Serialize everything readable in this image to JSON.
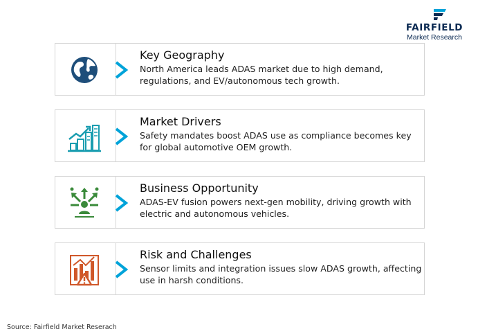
{
  "brand": {
    "name": "FAIRFIELD",
    "tagline": "Market Research",
    "color": "#0b2a52"
  },
  "accent_color": "#00a3d9",
  "cards": [
    {
      "title": "Key Geography",
      "text": "North America leads ADAS market due to high demand, regulations, and EV/autonomous tech growth.",
      "icon": "globe-icon",
      "icon_color": "#1e4e7a"
    },
    {
      "title": "Market Drivers",
      "text": "Safety mandates boost ADAS use as compliance becomes key for global automotive OEM growth.",
      "icon": "growth-city-icon",
      "icon_color": "#1a9db0"
    },
    {
      "title": "Business Opportunity",
      "text": "ADAS-EV fusion powers next-gen mobility, driving growth with electric and autonomous vehicles.",
      "icon": "opportunity-icon",
      "icon_color": "#3a8a3a"
    },
    {
      "title": "Risk and Challenges",
      "text": "Sensor limits and integration issues slow ADAS growth, affecting use in harsh conditions.",
      "icon": "risk-chart-icon",
      "icon_color": "#d0582a"
    }
  ],
  "source": "Source: Fairfield Market Reserach"
}
